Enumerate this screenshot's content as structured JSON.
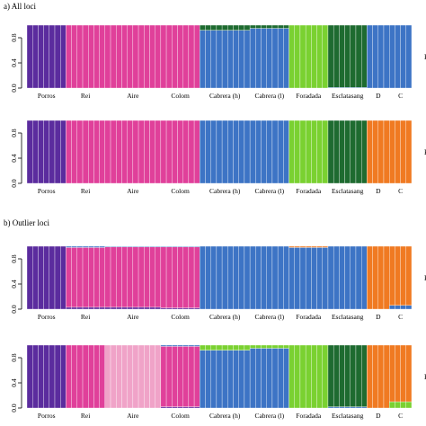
{
  "figure": {
    "section_titles": [
      "a) All loci",
      "b) Outlier loci"
    ],
    "ytick_labels": [
      "0.0",
      "0.4",
      "0.8"
    ],
    "right_labels": [
      "K",
      "K",
      "K",
      "K"
    ]
  },
  "chart_data": [
    {
      "type": "bar",
      "stacked": true,
      "section": "a) All loci",
      "ylim": [
        0,
        1
      ],
      "populations": [
        {
          "name": "Porros",
          "n": 7
        },
        {
          "name": "Rei",
          "n": 7
        },
        {
          "name": "Aire",
          "n": 10
        },
        {
          "name": "Colom",
          "n": 7
        },
        {
          "name": "Cabrera (h)",
          "n": 9
        },
        {
          "name": "Cabrera (l)",
          "n": 7
        },
        {
          "name": "Foradada",
          "n": 7
        },
        {
          "name": "Esclatasang",
          "n": 7
        },
        {
          "name": "D",
          "n": 4
        },
        {
          "name": "C",
          "n": 4
        }
      ],
      "clusters": [
        {
          "color": "#5b2c9e",
          "by_pop": [
            1,
            0,
            0,
            0,
            0,
            0,
            0,
            0,
            0,
            0
          ]
        },
        {
          "color": "#e0409a",
          "by_pop": [
            0,
            1,
            1,
            1,
            0,
            0,
            0,
            0,
            0,
            0
          ]
        },
        {
          "color": "#3d74c5",
          "by_pop": [
            0,
            0,
            0,
            0,
            0.92,
            0.95,
            0,
            0.01,
            1,
            1
          ]
        },
        {
          "color": "#1e6b30",
          "by_pop": [
            0,
            0,
            0,
            0,
            0.08,
            0.05,
            0,
            0.99,
            0,
            0
          ]
        },
        {
          "color": "#7ad131",
          "by_pop": [
            0,
            0,
            0,
            0,
            0,
            0,
            1,
            0,
            0,
            0
          ]
        }
      ]
    },
    {
      "type": "bar",
      "stacked": true,
      "section": "a) All loci",
      "ylim": [
        0,
        1
      ],
      "populations": [
        {
          "name": "Porros",
          "n": 7
        },
        {
          "name": "Rei",
          "n": 7
        },
        {
          "name": "Aire",
          "n": 10
        },
        {
          "name": "Colom",
          "n": 7
        },
        {
          "name": "Cabrera (h)",
          "n": 9
        },
        {
          "name": "Cabrera (l)",
          "n": 7
        },
        {
          "name": "Foradada",
          "n": 7
        },
        {
          "name": "Esclatasang",
          "n": 7
        },
        {
          "name": "D",
          "n": 4
        },
        {
          "name": "C",
          "n": 4
        }
      ],
      "clusters": [
        {
          "color": "#5b2c9e",
          "by_pop": [
            1,
            0,
            0,
            0,
            0,
            0,
            0,
            0,
            0,
            0
          ]
        },
        {
          "color": "#e0409a",
          "by_pop": [
            0,
            1,
            1,
            1,
            0,
            0,
            0,
            0,
            0,
            0
          ]
        },
        {
          "color": "#3d74c5",
          "by_pop": [
            0,
            0,
            0,
            0,
            1,
            1,
            0,
            0,
            0,
            0
          ]
        },
        {
          "color": "#7ad131",
          "by_pop": [
            0,
            0,
            0,
            0,
            0,
            0,
            1,
            0,
            0,
            0
          ]
        },
        {
          "color": "#1e6b30",
          "by_pop": [
            0,
            0,
            0,
            0,
            0,
            0,
            0,
            1,
            0,
            0
          ]
        },
        {
          "color": "#f07a22",
          "by_pop": [
            0,
            0,
            0,
            0,
            0,
            0,
            0,
            0,
            1,
            1
          ]
        }
      ]
    },
    {
      "type": "bar",
      "stacked": true,
      "section": "b) Outlier loci",
      "ylim": [
        0,
        1
      ],
      "populations": [
        {
          "name": "Porros",
          "n": 7
        },
        {
          "name": "Rei",
          "n": 7
        },
        {
          "name": "Aire",
          "n": 10
        },
        {
          "name": "Colom",
          "n": 7
        },
        {
          "name": "Cabrera (h)",
          "n": 9
        },
        {
          "name": "Cabrera (l)",
          "n": 7
        },
        {
          "name": "Foradada",
          "n": 7
        },
        {
          "name": "Esclatasang",
          "n": 7
        },
        {
          "name": "D",
          "n": 4
        },
        {
          "name": "C",
          "n": 4
        }
      ],
      "clusters": [
        {
          "color": "#5b2c9e",
          "by_pop": [
            1,
            0.03,
            0.03,
            0.02,
            0,
            0,
            0,
            0,
            0,
            0
          ]
        },
        {
          "color": "#e0409a",
          "by_pop": [
            0,
            0.95,
            0.96,
            0.97,
            0,
            0,
            0,
            0,
            0,
            0
          ]
        },
        {
          "color": "#3d74c5",
          "by_pop": [
            0,
            0.02,
            0.01,
            0.01,
            1,
            1,
            0.98,
            1,
            0,
            0.06
          ]
        },
        {
          "color": "#f07a22",
          "by_pop": [
            0,
            0,
            0,
            0,
            0,
            0,
            0.02,
            0,
            1,
            0.94
          ]
        }
      ]
    },
    {
      "type": "bar",
      "stacked": true,
      "section": "b) Outlier loci",
      "ylim": [
        0,
        1
      ],
      "populations": [
        {
          "name": "Porros",
          "n": 7
        },
        {
          "name": "Rei",
          "n": 7
        },
        {
          "name": "Aire",
          "n": 10
        },
        {
          "name": "Colom",
          "n": 7
        },
        {
          "name": "Cabrera (h)",
          "n": 9
        },
        {
          "name": "Cabrera (l)",
          "n": 7
        },
        {
          "name": "Foradada",
          "n": 7
        },
        {
          "name": "Esclatasang",
          "n": 7
        },
        {
          "name": "D",
          "n": 4
        },
        {
          "name": "C",
          "n": 4
        }
      ],
      "clusters": [
        {
          "color": "#5b2c9e",
          "by_pop": [
            1,
            0,
            0,
            0.02,
            0,
            0,
            0,
            0,
            0,
            0
          ]
        },
        {
          "color": "#e0409a",
          "by_pop": [
            0,
            1,
            0,
            0.96,
            0,
            0,
            0,
            0,
            0,
            0
          ]
        },
        {
          "color": "#f0a3c8",
          "by_pop": [
            0,
            0,
            1,
            0,
            0,
            0,
            0,
            0,
            0,
            0
          ]
        },
        {
          "color": "#3d74c5",
          "by_pop": [
            0,
            0,
            0,
            0.02,
            0.92,
            0.95,
            0,
            0.02,
            0,
            0
          ]
        },
        {
          "color": "#7ad131",
          "by_pop": [
            0,
            0,
            0,
            0,
            0.08,
            0.05,
            1,
            0,
            0,
            0.1
          ]
        },
        {
          "color": "#1e6b30",
          "by_pop": [
            0,
            0,
            0,
            0,
            0,
            0,
            0,
            0.98,
            0,
            0
          ]
        },
        {
          "color": "#f07a22",
          "by_pop": [
            0,
            0,
            0,
            0,
            0,
            0,
            0,
            0,
            1,
            0.9
          ]
        }
      ]
    }
  ]
}
